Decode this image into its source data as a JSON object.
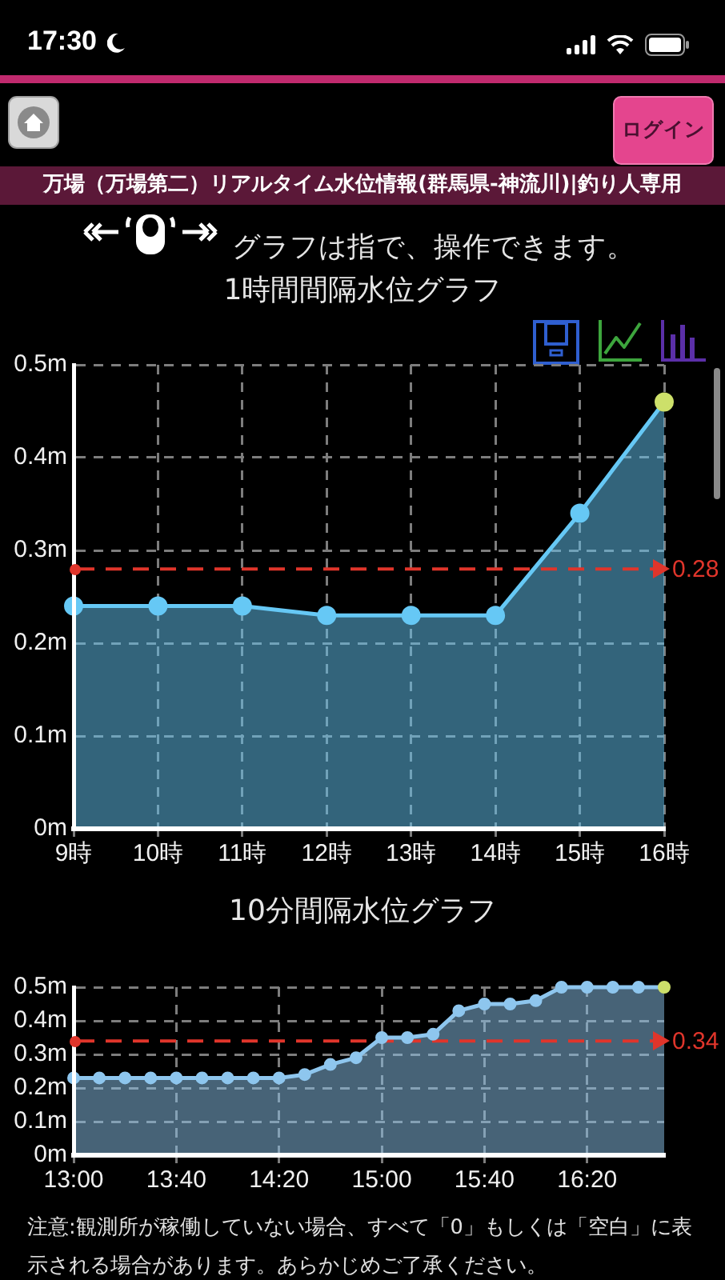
{
  "chart_data": [
    {
      "type": "area",
      "title": "1時間間隔水位グラフ",
      "annotations": [
        "17:30",
        "ログイン",
        "万場（万場第二）リアルタイム水位情報(群馬県-神流川)|釣り人専用",
        "グラフは指で、操作できます。"
      ],
      "categories": [
        "9時",
        "10時",
        "11時",
        "12時",
        "13時",
        "14時",
        "15時",
        "16時"
      ],
      "values": [
        0.24,
        0.24,
        0.24,
        0.23,
        0.23,
        0.23,
        0.34,
        0.46
      ],
      "color": "#66c8f5",
      "colors": [
        "#66c8f5",
        "#66c8f5",
        "#66c8f5",
        "#66c8f5",
        "#66c8f5",
        "#66c8f5",
        "#66c8f5",
        "#cde06a"
      ],
      "ylim": [
        0,
        0.5
      ],
      "yticks": [
        {
          "value": 0,
          "label": "0m"
        },
        {
          "value": 0.1,
          "label": "0.1m"
        },
        {
          "value": 0.2,
          "label": "0.2m"
        },
        {
          "value": 0.3,
          "label": "0.3m"
        },
        {
          "value": 0.4,
          "label": "0.4m"
        },
        {
          "value": 0.5,
          "label": "0.5m"
        }
      ],
      "grid": true,
      "marker": "circle",
      "ref_lines": [
        {
          "axis": "y",
          "value": 0.28,
          "label": "0.28",
          "color": "#e0352b",
          "line_style": "dashed"
        }
      ]
    },
    {
      "type": "area",
      "title": "10分間隔水位グラフ",
      "annotations": [
        "注意:観測所が稼働していない場合、すべて「0」もしくは「空白」に表示される場合があります。あらかじめご了承ください。"
      ],
      "categories": [
        "13:00",
        null,
        null,
        null,
        "13:40",
        null,
        null,
        null,
        "14:20",
        null,
        null,
        null,
        "15:00",
        null,
        null,
        null,
        "15:40",
        null,
        null,
        null,
        "16:20",
        null,
        null,
        null
      ],
      "values": [
        0.23,
        0.23,
        0.23,
        0.23,
        0.23,
        0.23,
        0.23,
        0.23,
        0.23,
        0.24,
        0.27,
        0.29,
        0.35,
        0.35,
        0.36,
        0.43,
        0.45,
        0.45,
        0.46,
        0.5,
        0.5,
        0.5,
        0.5,
        0.5
      ],
      "color": "#8ec6ee",
      "colors": [
        "#8ec6ee",
        "#8ec6ee",
        "#8ec6ee",
        "#8ec6ee",
        "#8ec6ee",
        "#8ec6ee",
        "#8ec6ee",
        "#8ec6ee",
        "#8ec6ee",
        "#8ec6ee",
        "#8ec6ee",
        "#8ec6ee",
        "#8ec6ee",
        "#8ec6ee",
        "#8ec6ee",
        "#8ec6ee",
        "#8ec6ee",
        "#8ec6ee",
        "#8ec6ee",
        "#8ec6ee",
        "#8ec6ee",
        "#8ec6ee",
        "#8ec6ee",
        "#cde06a"
      ],
      "ylim": [
        0,
        0.5
      ],
      "yticks": [
        {
          "value": 0,
          "label": "0m"
        },
        {
          "value": 0.1,
          "label": "0.1m"
        },
        {
          "value": 0.2,
          "label": "0.2m"
        },
        {
          "value": 0.3,
          "label": "0.3m"
        },
        {
          "value": 0.4,
          "label": "0.4m"
        },
        {
          "value": 0.5,
          "label": "0.5m"
        }
      ],
      "grid": true,
      "marker": "circle",
      "ref_lines": [
        {
          "axis": "y",
          "value": 0.34,
          "label": "0.34",
          "color": "#e0352b",
          "line_style": "dashed"
        }
      ]
    }
  ]
}
